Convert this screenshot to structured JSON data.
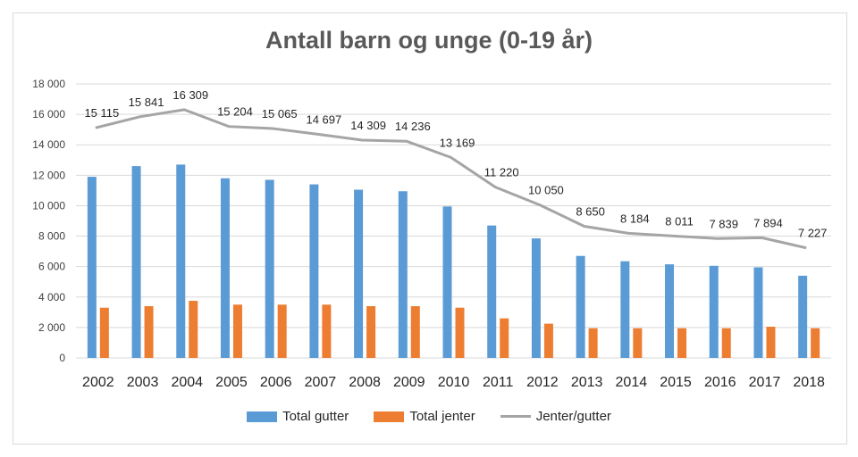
{
  "chart_data": {
    "type": "bar",
    "title": "Antall barn og unge (0-19 år)",
    "categories": [
      "2002",
      "2003",
      "2004",
      "2005",
      "2006",
      "2007",
      "2008",
      "2009",
      "2010",
      "2011",
      "2012",
      "2013",
      "2014",
      "2015",
      "2016",
      "2017",
      "2018"
    ],
    "ylim": [
      0,
      18000
    ],
    "yticks": [
      0,
      2000,
      4000,
      6000,
      8000,
      10000,
      12000,
      14000,
      16000,
      18000
    ],
    "ytick_labels": [
      "0",
      "2 000",
      "4 000",
      "6 000",
      "8 000",
      "10 000",
      "12 000",
      "14 000",
      "16 000",
      "18 000"
    ],
    "grid": true,
    "legend_position": "bottom",
    "series": [
      {
        "name": "Total gutter",
        "kind": "bar",
        "color": "#5b9bd5",
        "values": [
          11900,
          12600,
          12700,
          11800,
          11700,
          11400,
          11050,
          10950,
          9950,
          8700,
          7850,
          6700,
          6350,
          6150,
          6050,
          5950,
          5400
        ]
      },
      {
        "name": "Total jenter",
        "kind": "bar",
        "color": "#ed7d31",
        "values": [
          3300,
          3400,
          3750,
          3500,
          3500,
          3500,
          3400,
          3400,
          3300,
          2600,
          2250,
          1950,
          1950,
          1950,
          1950,
          2050,
          1950
        ]
      },
      {
        "name": "Jenter/gutter",
        "kind": "line",
        "color": "#a5a5a5",
        "values": [
          15115,
          15841,
          16309,
          15204,
          15065,
          14697,
          14309,
          14236,
          13169,
          11220,
          10050,
          8650,
          8184,
          8011,
          7839,
          7894,
          7227
        ],
        "labels": [
          "15 115",
          "15 841",
          "16 309",
          "15 204",
          "15 065",
          "14 697",
          "14 309",
          "14 236",
          "13 169",
          "11 220",
          "10 050",
          "8 650",
          "8 184",
          "8 011",
          "7 839",
          "7 894",
          "7 227"
        ]
      }
    ]
  }
}
